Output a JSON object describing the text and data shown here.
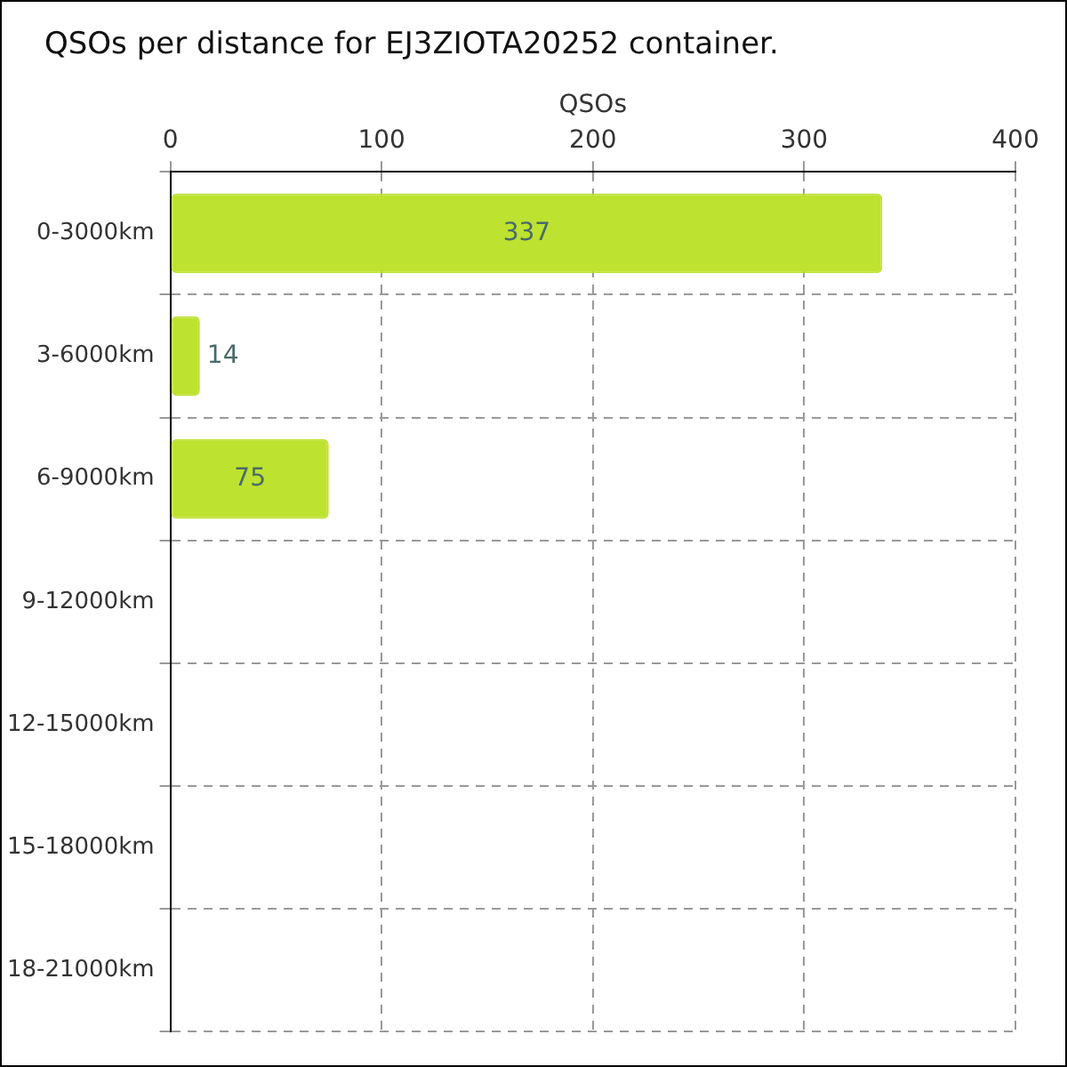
{
  "chart_data": {
    "type": "bar",
    "orientation": "horizontal",
    "title": "QSOs per distance for EJ3ZIOTA20252 container.",
    "xlabel": "QSOs",
    "categories": [
      "0-3000km",
      "3-6000km",
      "6-9000km",
      "9-12000km",
      "12-15000km",
      "15-18000km",
      "18-21000km"
    ],
    "values": [
      337,
      14,
      75,
      0,
      0,
      0,
      0
    ],
    "value_labels": [
      "337",
      "14",
      "75",
      null,
      null,
      null,
      null
    ],
    "color": "#bde22f",
    "xlim": [
      0,
      400
    ],
    "xticks": [
      0,
      100,
      200,
      300,
      400
    ],
    "grid": true,
    "line_style": "dashed",
    "legend": false
  }
}
